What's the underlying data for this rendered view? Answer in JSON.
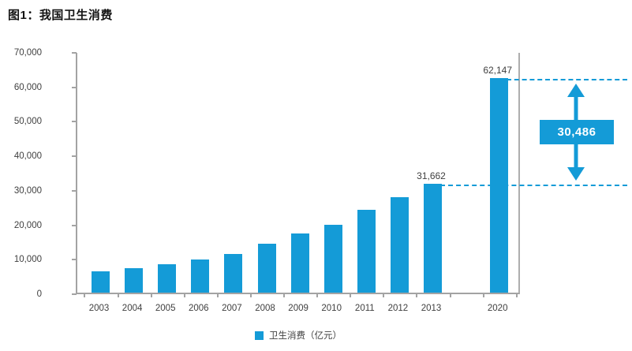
{
  "figure": {
    "title": "图1：我国卫生消费"
  },
  "legend": {
    "label": "卫生消费（亿元）"
  },
  "chart_data": {
    "type": "bar",
    "title": "图1：我国卫生消费",
    "xlabel": "",
    "ylabel": "卫生消费（亿元）",
    "ylim": [
      0,
      70000
    ],
    "y_tick_labels": [
      "70,000",
      "60,000",
      "50,000",
      "40,000",
      "30,000",
      "20,000",
      "10,000",
      "0"
    ],
    "grid": false,
    "legend_position": "bottom",
    "bar_color": "#149bd7",
    "categories": [
      "2003",
      "2004",
      "2005",
      "2006",
      "2007",
      "2008",
      "2009",
      "2010",
      "2011",
      "2012",
      "2013",
      "2020"
    ],
    "values": [
      6200,
      7200,
      8300,
      9500,
      11200,
      14100,
      17100,
      19700,
      24000,
      27700,
      31662,
      62147
    ],
    "slots": [
      0,
      1,
      2,
      3,
      4,
      5,
      6,
      7,
      8,
      9,
      10,
      12
    ],
    "slot_count": 13,
    "data_labels": {
      "2013": "31,662",
      "2020": "62,147"
    },
    "annotation": {
      "difference_label": "30,486",
      "from_value": 31662,
      "to_value": 62147
    }
  }
}
